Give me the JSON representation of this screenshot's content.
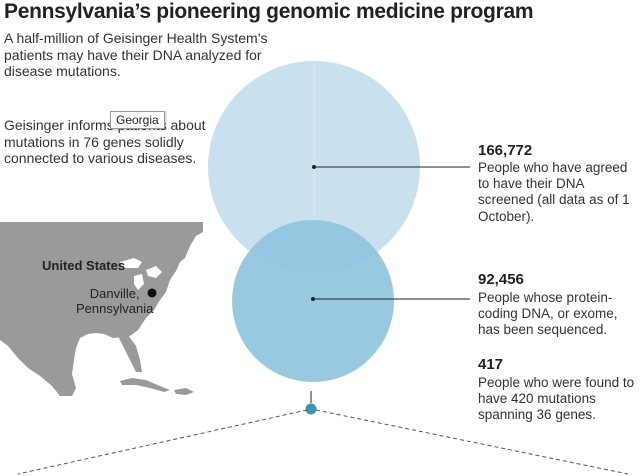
{
  "title": "Pennsylvania’s pioneering genomic medicine program",
  "intro": "A half-million of Geisinger Health System’s patients may have their DNA analyzed for disease mutations.",
  "intro2": "Geisinger informs patients about mutations in 76 genes solidly connected to various diseases.",
  "tooltip": "Georgia",
  "map": {
    "country_label": "United States",
    "city_label": "Danville,\nPennsylvania"
  },
  "stats": [
    {
      "value": "166,772",
      "description": "People who have agreed to have their DNA screened (all data as of 1 October)."
    },
    {
      "value": "92,456",
      "description": "People whose protein-coding DNA, or exome, has been sequenced."
    },
    {
      "value": "417",
      "description": "People who were found to have 420 mutations spanning 36 genes."
    }
  ],
  "colors": {
    "circle_large": "#c9e1ee",
    "circle_medium": "#92c6de",
    "circle_small": "#3e93b7",
    "land": "#9a9a9a",
    "water": "#ffffff"
  }
}
